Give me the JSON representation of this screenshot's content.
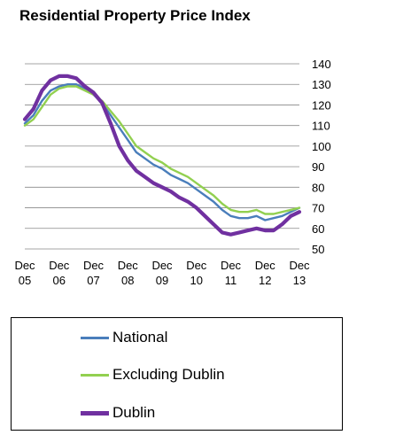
{
  "chart_data": {
    "type": "line",
    "title": "Residential Property Price Index",
    "xlabel": "",
    "ylabel": "",
    "ylim": [
      50,
      140
    ],
    "yticks": [
      50,
      60,
      70,
      80,
      90,
      100,
      110,
      120,
      130,
      140
    ],
    "xlim": [
      "2005-12",
      "2013-12"
    ],
    "xticks": [
      {
        "month": "2005-12",
        "line1": "Dec",
        "line2": "05"
      },
      {
        "month": "2006-12",
        "line1": "Dec",
        "line2": "06"
      },
      {
        "month": "2007-12",
        "line1": "Dec",
        "line2": "07"
      },
      {
        "month": "2008-12",
        "line1": "Dec",
        "line2": "08"
      },
      {
        "month": "2009-12",
        "line1": "Dec",
        "line2": "09"
      },
      {
        "month": "2010-12",
        "line1": "Dec",
        "line2": "10"
      },
      {
        "month": "2011-12",
        "line1": "Dec",
        "line2": "11"
      },
      {
        "month": "2012-12",
        "line1": "Dec",
        "line2": "12"
      },
      {
        "month": "2013-12",
        "line1": "Dec",
        "line2": "13"
      }
    ],
    "grid": {
      "horizontal": true,
      "vertical": false
    },
    "yaxis_position": "right",
    "legend_position": "bottom",
    "series": [
      {
        "name": "National",
        "color": "#4a7ebb",
        "points": [
          [
            "2005-12",
            111
          ],
          [
            "2006-03",
            115
          ],
          [
            "2006-06",
            122
          ],
          [
            "2006-09",
            127
          ],
          [
            "2006-12",
            129
          ],
          [
            "2007-03",
            130
          ],
          [
            "2007-06",
            130
          ],
          [
            "2007-09",
            128
          ],
          [
            "2007-12",
            125
          ],
          [
            "2008-03",
            121
          ],
          [
            "2008-06",
            115
          ],
          [
            "2008-09",
            109
          ],
          [
            "2008-12",
            103
          ],
          [
            "2009-03",
            97
          ],
          [
            "2009-06",
            94
          ],
          [
            "2009-09",
            91
          ],
          [
            "2009-12",
            89
          ],
          [
            "2010-03",
            86
          ],
          [
            "2010-06",
            84
          ],
          [
            "2010-09",
            82
          ],
          [
            "2010-12",
            79
          ],
          [
            "2011-03",
            76
          ],
          [
            "2011-06",
            73
          ],
          [
            "2011-09",
            69
          ],
          [
            "2011-12",
            66
          ],
          [
            "2012-03",
            65
          ],
          [
            "2012-06",
            65
          ],
          [
            "2012-09",
            66
          ],
          [
            "2012-12",
            64
          ],
          [
            "2013-03",
            65
          ],
          [
            "2013-06",
            66
          ],
          [
            "2013-09",
            68
          ],
          [
            "2013-12",
            70
          ]
        ]
      },
      {
        "name": "Excluding Dublin",
        "color": "#92d050",
        "points": [
          [
            "2005-12",
            110
          ],
          [
            "2006-03",
            113
          ],
          [
            "2006-06",
            119
          ],
          [
            "2006-09",
            125
          ],
          [
            "2006-12",
            128
          ],
          [
            "2007-03",
            129
          ],
          [
            "2007-06",
            129
          ],
          [
            "2007-09",
            127
          ],
          [
            "2007-12",
            125
          ],
          [
            "2008-03",
            122
          ],
          [
            "2008-06",
            117
          ],
          [
            "2008-09",
            112
          ],
          [
            "2008-12",
            106
          ],
          [
            "2009-03",
            100
          ],
          [
            "2009-06",
            97
          ],
          [
            "2009-09",
            94
          ],
          [
            "2009-12",
            92
          ],
          [
            "2010-03",
            89
          ],
          [
            "2010-06",
            87
          ],
          [
            "2010-09",
            85
          ],
          [
            "2010-12",
            82
          ],
          [
            "2011-03",
            79
          ],
          [
            "2011-06",
            76
          ],
          [
            "2011-09",
            72
          ],
          [
            "2011-12",
            69
          ],
          [
            "2012-03",
            68
          ],
          [
            "2012-06",
            68
          ],
          [
            "2012-09",
            69
          ],
          [
            "2012-12",
            67
          ],
          [
            "2013-03",
            67
          ],
          [
            "2013-06",
            68
          ],
          [
            "2013-09",
            69
          ],
          [
            "2013-12",
            70
          ]
        ]
      },
      {
        "name": "Dublin",
        "color": "#7030a0",
        "points": [
          [
            "2005-12",
            113
          ],
          [
            "2006-03",
            118
          ],
          [
            "2006-06",
            127
          ],
          [
            "2006-09",
            132
          ],
          [
            "2006-12",
            134
          ],
          [
            "2007-03",
            134
          ],
          [
            "2007-06",
            133
          ],
          [
            "2007-09",
            129
          ],
          [
            "2007-12",
            126
          ],
          [
            "2008-03",
            121
          ],
          [
            "2008-06",
            111
          ],
          [
            "2008-09",
            100
          ],
          [
            "2008-12",
            93
          ],
          [
            "2009-03",
            88
          ],
          [
            "2009-06",
            85
          ],
          [
            "2009-09",
            82
          ],
          [
            "2009-12",
            80
          ],
          [
            "2010-03",
            78
          ],
          [
            "2010-06",
            75
          ],
          [
            "2010-09",
            73
          ],
          [
            "2010-12",
            70
          ],
          [
            "2011-03",
            66
          ],
          [
            "2011-06",
            62
          ],
          [
            "2011-09",
            58
          ],
          [
            "2011-12",
            57
          ],
          [
            "2012-03",
            58
          ],
          [
            "2012-06",
            59
          ],
          [
            "2012-09",
            60
          ],
          [
            "2012-12",
            59
          ],
          [
            "2013-03",
            59
          ],
          [
            "2013-06",
            62
          ],
          [
            "2013-09",
            66
          ],
          [
            "2013-12",
            68
          ]
        ]
      }
    ]
  }
}
